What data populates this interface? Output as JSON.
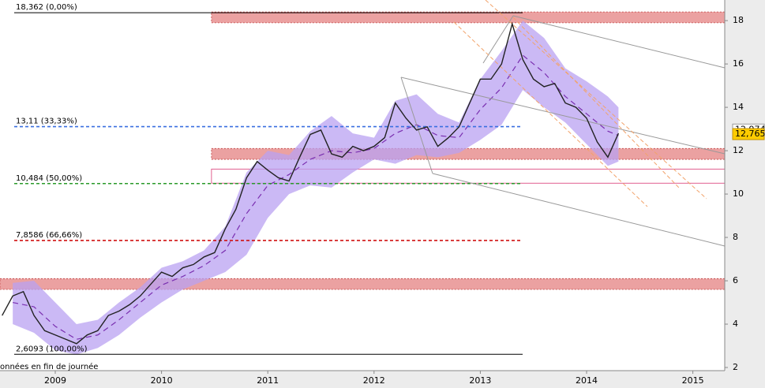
{
  "chart_data": {
    "type": "line",
    "note": "onnées en fin de journée",
    "color": "#222222",
    "x": [
      2008.5,
      2008.6,
      2008.7,
      2008.8,
      2008.9,
      2009.0,
      2009.1,
      2009.2,
      2009.3,
      2009.4,
      2009.5,
      2009.6,
      2009.7,
      2009.8,
      2009.9,
      2010.0,
      2010.1,
      2010.2,
      2010.3,
      2010.4,
      2010.5,
      2010.6,
      2010.7,
      2010.8,
      2010.9,
      2011.0,
      2011.1,
      2011.2,
      2011.3,
      2011.4,
      2011.5,
      2011.6,
      2011.7,
      2011.8,
      2011.9,
      2012.0,
      2012.1,
      2012.2,
      2012.3,
      2012.4,
      2012.5,
      2012.6,
      2012.7,
      2012.8,
      2012.9,
      2013.0,
      2013.1,
      2013.2,
      2013.3,
      2013.4,
      2013.5,
      2013.6,
      2013.7,
      2013.8,
      2013.9,
      2014.0,
      2014.1,
      2014.2,
      2014.3
    ],
    "values": [
      4.4,
      5.3,
      5.5,
      4.4,
      3.7,
      3.5,
      3.3,
      3.1,
      3.5,
      3.7,
      4.4,
      4.6,
      4.9,
      5.3,
      5.85,
      6.4,
      6.2,
      6.6,
      6.75,
      7.1,
      7.3,
      8.4,
      9.3,
      10.75,
      11.5,
      11.1,
      10.75,
      10.6,
      11.7,
      12.75,
      12.95,
      11.85,
      11.7,
      12.2,
      12.0,
      12.2,
      12.6,
      14.2,
      13.5,
      12.95,
      13.1,
      12.2,
      12.6,
      13.1,
      14.2,
      15.3,
      15.3,
      16.0,
      17.85,
      16.2,
      15.3,
      14.95,
      15.1,
      14.2,
      14.0,
      13.5,
      12.4,
      11.7,
      12.8
    ],
    "band": {
      "color": "#b9a2f2",
      "ma_color": "#7a2fb0",
      "x": [
        2008.6,
        2008.8,
        2009.0,
        2009.2,
        2009.4,
        2009.6,
        2009.8,
        2010.0,
        2010.2,
        2010.4,
        2010.6,
        2010.8,
        2011.0,
        2011.2,
        2011.4,
        2011.6,
        2011.8,
        2012.0,
        2012.2,
        2012.4,
        2012.6,
        2012.8,
        2013.0,
        2013.2,
        2013.4,
        2013.6,
        2013.8,
        2014.0,
        2014.2,
        2014.3
      ],
      "upper": [
        5.9,
        6.0,
        5.0,
        4.0,
        4.2,
        5.0,
        5.7,
        6.6,
        6.9,
        7.4,
        8.5,
        11.0,
        12.0,
        11.8,
        12.9,
        13.6,
        12.8,
        12.6,
        14.3,
        14.6,
        13.7,
        13.3,
        15.3,
        16.6,
        18.0,
        17.2,
        15.8,
        15.2,
        14.5,
        14.0
      ],
      "lower": [
        4.0,
        3.6,
        2.8,
        2.6,
        2.9,
        3.5,
        4.3,
        5.0,
        5.6,
        6.0,
        6.4,
        7.2,
        8.9,
        10.0,
        10.4,
        10.3,
        11.0,
        11.6,
        11.4,
        11.8,
        11.7,
        11.9,
        12.5,
        13.2,
        14.8,
        14.0,
        13.3,
        12.3,
        11.3,
        11.5
      ],
      "ma": [
        5.0,
        4.8,
        3.9,
        3.3,
        3.5,
        4.2,
        5.0,
        5.8,
        6.2,
        6.7,
        7.4,
        9.1,
        10.4,
        10.9,
        11.6,
        12.0,
        11.9,
        12.1,
        12.8,
        13.2,
        12.7,
        12.6,
        13.9,
        14.9,
        16.4,
        15.6,
        14.5,
        13.7,
        12.9,
        12.7
      ]
    },
    "levels": [
      {
        "value": 18.362,
        "label": "18,362 (0,00%)",
        "color": "#000000",
        "dashed": false
      },
      {
        "value": 13.11,
        "label": "13,11 (33,33%)",
        "color": "#3a6fe0",
        "dashed": true
      },
      {
        "value": 10.484,
        "label": "10,484 (50,00%)",
        "color": "#2a9a2a",
        "dashed": true
      },
      {
        "value": 7.8586,
        "label": "7,8586 (66,66%)",
        "color": "#d01010",
        "dashed": true
      },
      {
        "value": 2.6093,
        "label": "2,6093 (100,00%)",
        "color": "#000000",
        "dashed": false
      }
    ],
    "zones": [
      {
        "ylim": [
          17.9,
          18.4
        ],
        "from": 2010.47
      },
      {
        "ylim": [
          11.6,
          12.1
        ],
        "from": 2010.47
      },
      {
        "ylim": [
          5.6,
          6.1
        ],
        "from": 2008.48
      }
    ],
    "box": {
      "ylim": [
        10.5,
        11.15
      ],
      "from": 2010.47
    },
    "price_labels": [
      {
        "value": 12.974,
        "label": "12,974"
      },
      {
        "value": 12.765,
        "label": "12,765"
      }
    ],
    "xlim": [
      2008.48,
      2015.3
    ],
    "ylim": [
      1.855,
      18.95
    ],
    "xticks": [
      {
        "value": 2009,
        "label": "2009"
      },
      {
        "value": 2010,
        "label": "2010"
      },
      {
        "value": 2011,
        "label": "2011"
      },
      {
        "value": 2012,
        "label": "2012"
      },
      {
        "value": 2013,
        "label": "2013"
      },
      {
        "value": 2014,
        "label": "2014"
      },
      {
        "value": 2015,
        "label": "2015"
      }
    ],
    "yticks": [
      2,
      4,
      6,
      8,
      10,
      12,
      14,
      16,
      18
    ]
  }
}
